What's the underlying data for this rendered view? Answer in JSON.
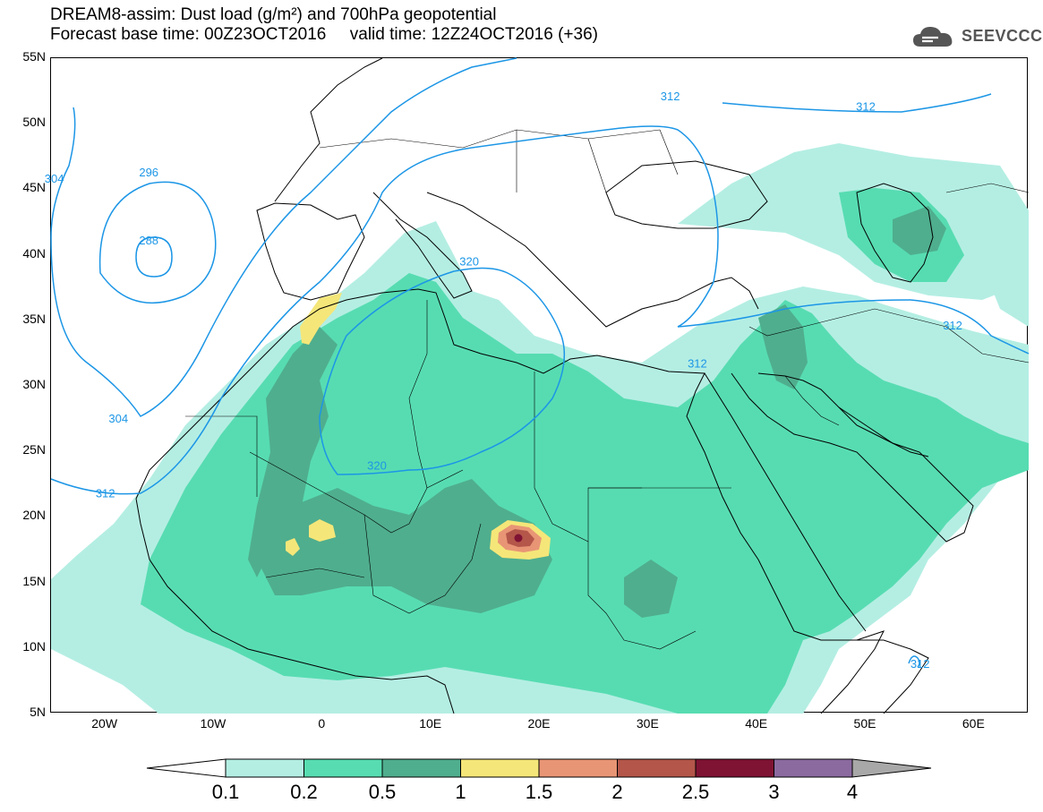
{
  "title": {
    "line1": "DREAM8-assim: Dust load (g/m²) and 700hPa geopotential",
    "line2": "Forecast base time: 00Z23OCT2016     valid time: 12Z24OCT2016 (+36)"
  },
  "logo": {
    "text": "SEEVCCC",
    "icon": "cloud-icon"
  },
  "map": {
    "lat_labels": [
      "55N",
      "50N",
      "45N",
      "40N",
      "35N",
      "30N",
      "25N",
      "20N",
      "15N",
      "10N",
      "5N"
    ],
    "lon_labels": [
      "20W",
      "10W",
      "0",
      "10E",
      "20E",
      "30E",
      "40E",
      "50E",
      "60E"
    ],
    "lat_range": [
      5,
      55
    ],
    "lon_range": [
      -25,
      65
    ],
    "contour_labels": [
      {
        "text": "312",
        "lon": 32,
        "lat": 51.8
      },
      {
        "text": "312",
        "lon": 50,
        "lat": 51
      },
      {
        "text": "296",
        "lon": -16,
        "lat": 46
      },
      {
        "text": "304",
        "lon": -24.7,
        "lat": 45.5
      },
      {
        "text": "288",
        "lon": -16,
        "lat": 40.8
      },
      {
        "text": "320",
        "lon": 13.5,
        "lat": 39.2
      },
      {
        "text": "312",
        "lon": 58,
        "lat": 34.3
      },
      {
        "text": "312",
        "lon": 34.5,
        "lat": 31.4
      },
      {
        "text": "304",
        "lon": -18.8,
        "lat": 27.2
      },
      {
        "text": "320",
        "lon": 5,
        "lat": 23.6
      },
      {
        "text": "312",
        "lon": -20,
        "lat": 21.5
      },
      {
        "text": "312",
        "lon": 55,
        "lat": 8.5
      }
    ],
    "colors": {
      "level_0.1": "#b4eee3",
      "level_0.2": "#57dcb1",
      "level_0.5": "#4fae8e",
      "level_1": "#f5e679",
      "level_1.5": "#e89575",
      "level_2": "#b4564a",
      "level_2.5": "#7f1334",
      "contour": "#1c96e6"
    }
  },
  "colorbar": {
    "labels": [
      "0.1",
      "0.2",
      "0.5",
      "1",
      "1.5",
      "2",
      "2.5",
      "3",
      "4"
    ],
    "colors": [
      "#b4eee3",
      "#57dcb1",
      "#4fae8e",
      "#f5e679",
      "#e89575",
      "#b4564a",
      "#7f1334",
      "#8b6aa0"
    ],
    "left_arrow_color": "#ffffff",
    "right_arrow_color": "#a8a8a8"
  }
}
